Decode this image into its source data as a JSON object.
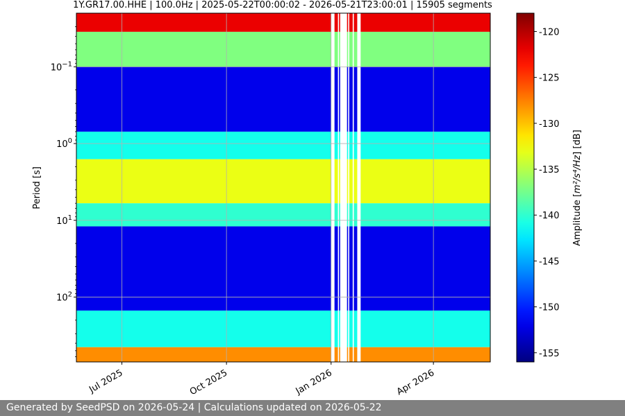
{
  "chart_data": {
    "type": "heatmap",
    "title": "1Y.GR17.00.HHE | 100.0Hz | 2025-05-22T00:00:02 - 2026-05-21T23:00:01 | 15905 segments",
    "xlabel": "",
    "ylabel": "Period [s]",
    "x_range": [
      "2025-05-22",
      "2026-05-21"
    ],
    "x_ticks": [
      {
        "date": "2025-07-01",
        "label": "Jul 2025"
      },
      {
        "date": "2025-10-01",
        "label": "Oct 2025"
      },
      {
        "date": "2026-01-01",
        "label": "Jan 2026"
      },
      {
        "date": "2026-04-01",
        "label": "Apr 2026"
      }
    ],
    "y_scale": "log",
    "y_inverted": true,
    "y_range": [
      0.02,
      700
    ],
    "y_ticks": [
      {
        "value": 0.1,
        "base": "10",
        "exp": "−1"
      },
      {
        "value": 1,
        "base": "10",
        "exp": "0"
      },
      {
        "value": 10,
        "base": "10",
        "exp": "1"
      },
      {
        "value": 100,
        "base": "10",
        "exp": "2"
      }
    ],
    "grid": true,
    "colorbar": {
      "label_main": "Amplitude [",
      "label_math": "m²/s⁴/Hz",
      "label_end": "] [dB]",
      "range": [
        -156,
        -118
      ],
      "ticks": [
        "-120",
        "-125",
        "-130",
        "-135",
        "-140",
        "-145",
        "-150",
        "-155"
      ],
      "tick_values": [
        -120,
        -125,
        -130,
        -135,
        -140,
        -145,
        -150,
        -155
      ],
      "colormap": "jet"
    },
    "data_gaps": [
      {
        "start": "2026-01-01",
        "end": "2026-01-04"
      },
      {
        "start": "2026-01-07",
        "end": "2026-01-08"
      },
      {
        "start": "2026-01-09",
        "end": "2026-01-15"
      },
      {
        "start": "2026-01-16",
        "end": "2026-01-17"
      },
      {
        "start": "2026-01-20",
        "end": "2026-01-21"
      },
      {
        "start": "2026-01-24",
        "end": "2026-01-27"
      }
    ],
    "period_bands": [
      {
        "period_min": 0.02,
        "period_max": 0.035,
        "amplitude_db": -122
      },
      {
        "period_min": 0.035,
        "period_max": 0.1,
        "amplitude_db": -137
      },
      {
        "period_min": 0.1,
        "period_max": 0.7,
        "amplitude_db": -152
      },
      {
        "period_min": 0.7,
        "period_max": 1.6,
        "amplitude_db": -141
      },
      {
        "period_min": 1.6,
        "period_max": 6,
        "amplitude_db": -133
      },
      {
        "period_min": 6,
        "period_max": 12,
        "amplitude_db": -140
      },
      {
        "period_min": 12,
        "period_max": 150,
        "amplitude_db": -152
      },
      {
        "period_min": 150,
        "period_max": 450,
        "amplitude_db": -141
      },
      {
        "period_min": 450,
        "period_max": 700,
        "amplitude_db": -128
      }
    ]
  },
  "footer": {
    "text": "Generated by SeedPSD on 2026-05-24 | Calculations updated on 2026-05-22"
  }
}
